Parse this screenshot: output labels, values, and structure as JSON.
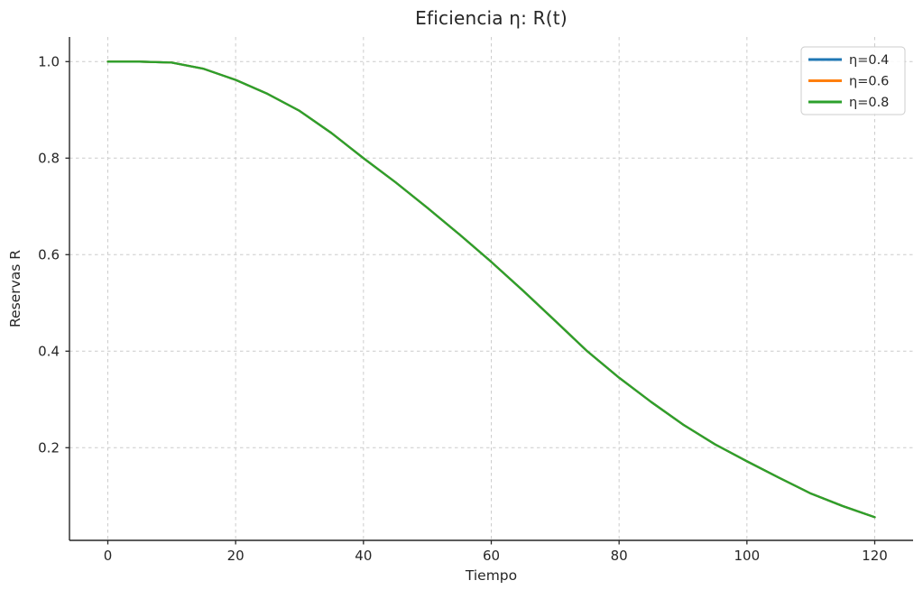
{
  "figure": {
    "background": "#ffffff",
    "text_color": "#262626",
    "spine_color": "#262626",
    "grid_color": "#cccccc"
  },
  "chart_data": {
    "type": "line",
    "title": "Eficiencia η: R(t)",
    "xlabel": "Tiempo",
    "ylabel": "Reservas R",
    "x": [
      0,
      5,
      10,
      15,
      20,
      25,
      30,
      35,
      40,
      45,
      50,
      55,
      60,
      65,
      70,
      75,
      80,
      85,
      90,
      95,
      100,
      105,
      110,
      115,
      120
    ],
    "series": [
      {
        "name": "η=0.4",
        "color": "#1f77b4",
        "values": [
          1.0,
          1.0,
          0.998,
          0.985,
          0.962,
          0.933,
          0.898,
          0.852,
          0.8,
          0.75,
          0.697,
          0.642,
          0.585,
          0.525,
          0.463,
          0.4,
          0.345,
          0.295,
          0.248,
          0.207,
          0.172,
          0.138,
          0.105,
          0.079,
          0.056
        ]
      },
      {
        "name": "η=0.6",
        "color": "#ff7f0e",
        "values": [
          1.0,
          1.0,
          0.998,
          0.985,
          0.962,
          0.933,
          0.898,
          0.852,
          0.8,
          0.75,
          0.697,
          0.642,
          0.585,
          0.525,
          0.463,
          0.4,
          0.345,
          0.295,
          0.248,
          0.207,
          0.172,
          0.138,
          0.105,
          0.079,
          0.056
        ]
      },
      {
        "name": "η=0.8",
        "color": "#2ca02c",
        "values": [
          1.0,
          1.0,
          0.998,
          0.985,
          0.962,
          0.933,
          0.898,
          0.852,
          0.8,
          0.75,
          0.697,
          0.642,
          0.585,
          0.525,
          0.463,
          0.4,
          0.345,
          0.295,
          0.248,
          0.207,
          0.172,
          0.138,
          0.105,
          0.079,
          0.056
        ]
      }
    ],
    "xlim": [
      -6,
      126
    ],
    "ylim": [
      0.008,
      1.051
    ],
    "xticks": [
      0,
      20,
      40,
      60,
      80,
      100,
      120
    ],
    "xtick_labels": [
      "0",
      "20",
      "40",
      "60",
      "80",
      "100",
      "120"
    ],
    "yticks": [
      0.2,
      0.4,
      0.6,
      0.8,
      1.0
    ],
    "ytick_labels": [
      "0.2",
      "0.4",
      "0.6",
      "0.8",
      "1.0"
    ],
    "grid": true,
    "grid_style": "dashed",
    "legend": {
      "position": "upper right",
      "entries": [
        "η=0.4",
        "η=0.6",
        "η=0.8"
      ]
    },
    "note": "all three series coincide exactly; only the last-drawn series (η=0.8, green) is visible as a single curve"
  }
}
